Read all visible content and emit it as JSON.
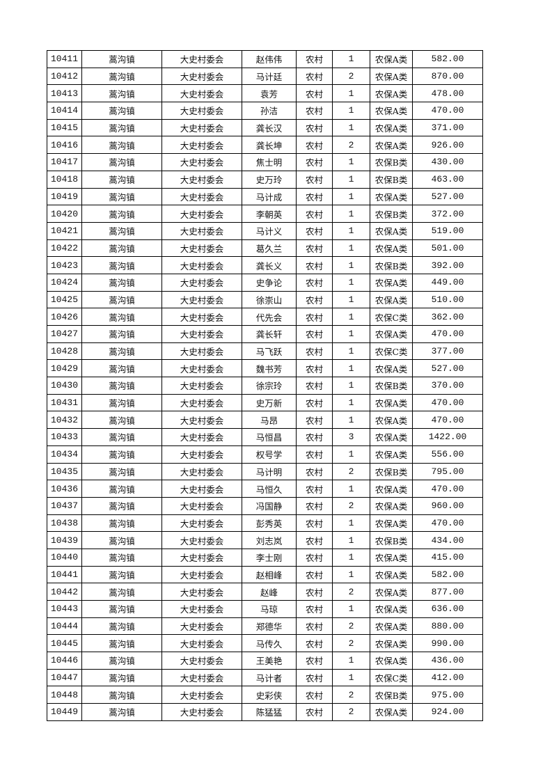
{
  "table": {
    "rows": [
      [
        "10411",
        "蒿沟镇",
        "大史村委会",
        "赵伟伟",
        "农村",
        "1",
        "农保A类",
        "582.00"
      ],
      [
        "10412",
        "蒿沟镇",
        "大史村委会",
        "马计廷",
        "农村",
        "2",
        "农保A类",
        "870.00"
      ],
      [
        "10413",
        "蒿沟镇",
        "大史村委会",
        "袁芳",
        "农村",
        "1",
        "农保A类",
        "478.00"
      ],
      [
        "10414",
        "蒿沟镇",
        "大史村委会",
        "孙洁",
        "农村",
        "1",
        "农保A类",
        "470.00"
      ],
      [
        "10415",
        "蒿沟镇",
        "大史村委会",
        "龚长汉",
        "农村",
        "1",
        "农保A类",
        "371.00"
      ],
      [
        "10416",
        "蒿沟镇",
        "大史村委会",
        "龚长坤",
        "农村",
        "2",
        "农保A类",
        "926.00"
      ],
      [
        "10417",
        "蒿沟镇",
        "大史村委会",
        "焦士明",
        "农村",
        "1",
        "农保B类",
        "430.00"
      ],
      [
        "10418",
        "蒿沟镇",
        "大史村委会",
        "史万玲",
        "农村",
        "1",
        "农保B类",
        "463.00"
      ],
      [
        "10419",
        "蒿沟镇",
        "大史村委会",
        "马计成",
        "农村",
        "1",
        "农保A类",
        "527.00"
      ],
      [
        "10420",
        "蒿沟镇",
        "大史村委会",
        "李朝英",
        "农村",
        "1",
        "农保B类",
        "372.00"
      ],
      [
        "10421",
        "蒿沟镇",
        "大史村委会",
        "马计义",
        "农村",
        "1",
        "农保A类",
        "519.00"
      ],
      [
        "10422",
        "蒿沟镇",
        "大史村委会",
        "葛久兰",
        "农村",
        "1",
        "农保A类",
        "501.00"
      ],
      [
        "10423",
        "蒿沟镇",
        "大史村委会",
        "龚长义",
        "农村",
        "1",
        "农保B类",
        "392.00"
      ],
      [
        "10424",
        "蒿沟镇",
        "大史村委会",
        "史争论",
        "农村",
        "1",
        "农保A类",
        "449.00"
      ],
      [
        "10425",
        "蒿沟镇",
        "大史村委会",
        "徐崇山",
        "农村",
        "1",
        "农保A类",
        "510.00"
      ],
      [
        "10426",
        "蒿沟镇",
        "大史村委会",
        "代先会",
        "农村",
        "1",
        "农保C类",
        "362.00"
      ],
      [
        "10427",
        "蒿沟镇",
        "大史村委会",
        "龚长轩",
        "农村",
        "1",
        "农保A类",
        "470.00"
      ],
      [
        "10428",
        "蒿沟镇",
        "大史村委会",
        "马飞跃",
        "农村",
        "1",
        "农保C类",
        "377.00"
      ],
      [
        "10429",
        "蒿沟镇",
        "大史村委会",
        "魏书芳",
        "农村",
        "1",
        "农保A类",
        "527.00"
      ],
      [
        "10430",
        "蒿沟镇",
        "大史村委会",
        "徐宗玲",
        "农村",
        "1",
        "农保B类",
        "370.00"
      ],
      [
        "10431",
        "蒿沟镇",
        "大史村委会",
        "史万新",
        "农村",
        "1",
        "农保A类",
        "470.00"
      ],
      [
        "10432",
        "蒿沟镇",
        "大史村委会",
        "马昂",
        "农村",
        "1",
        "农保A类",
        "470.00"
      ],
      [
        "10433",
        "蒿沟镇",
        "大史村委会",
        "马恒昌",
        "农村",
        "3",
        "农保A类",
        "1422.00"
      ],
      [
        "10434",
        "蒿沟镇",
        "大史村委会",
        "权号学",
        "农村",
        "1",
        "农保A类",
        "556.00"
      ],
      [
        "10435",
        "蒿沟镇",
        "大史村委会",
        "马计明",
        "农村",
        "2",
        "农保B类",
        "795.00"
      ],
      [
        "10436",
        "蒿沟镇",
        "大史村委会",
        "马恒久",
        "农村",
        "1",
        "农保A类",
        "470.00"
      ],
      [
        "10437",
        "蒿沟镇",
        "大史村委会",
        "冯国静",
        "农村",
        "2",
        "农保A类",
        "960.00"
      ],
      [
        "10438",
        "蒿沟镇",
        "大史村委会",
        "彭秀英",
        "农村",
        "1",
        "农保A类",
        "470.00"
      ],
      [
        "10439",
        "蒿沟镇",
        "大史村委会",
        "刘志岚",
        "农村",
        "1",
        "农保B类",
        "434.00"
      ],
      [
        "10440",
        "蒿沟镇",
        "大史村委会",
        "李士刚",
        "农村",
        "1",
        "农保A类",
        "415.00"
      ],
      [
        "10441",
        "蒿沟镇",
        "大史村委会",
        "赵相峰",
        "农村",
        "1",
        "农保A类",
        "582.00"
      ],
      [
        "10442",
        "蒿沟镇",
        "大史村委会",
        "赵峰",
        "农村",
        "2",
        "农保A类",
        "877.00"
      ],
      [
        "10443",
        "蒿沟镇",
        "大史村委会",
        "马琼",
        "农村",
        "1",
        "农保A类",
        "636.00"
      ],
      [
        "10444",
        "蒿沟镇",
        "大史村委会",
        "郑德华",
        "农村",
        "2",
        "农保A类",
        "880.00"
      ],
      [
        "10445",
        "蒿沟镇",
        "大史村委会",
        "马传久",
        "农村",
        "2",
        "农保A类",
        "990.00"
      ],
      [
        "10446",
        "蒿沟镇",
        "大史村委会",
        "王美艳",
        "农村",
        "1",
        "农保A类",
        "436.00"
      ],
      [
        "10447",
        "蒿沟镇",
        "大史村委会",
        "马计者",
        "农村",
        "1",
        "农保C类",
        "412.00"
      ],
      [
        "10448",
        "蒿沟镇",
        "大史村委会",
        "史彩侠",
        "农村",
        "2",
        "农保B类",
        "975.00"
      ],
      [
        "10449",
        "蒿沟镇",
        "大史村委会",
        "陈猛猛",
        "农村",
        "2",
        "农保A类",
        "924.00"
      ]
    ]
  }
}
